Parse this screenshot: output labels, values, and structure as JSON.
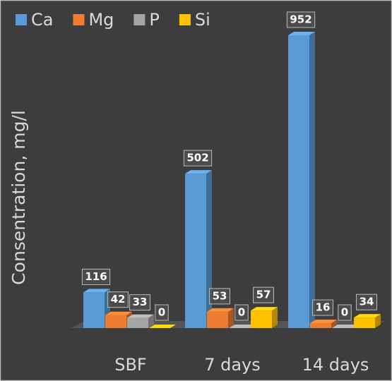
{
  "chart_data": {
    "type": "bar",
    "y_label": "Consentration, mg/l",
    "categories": [
      "SBF",
      "7 days",
      "14 days"
    ],
    "series": [
      {
        "name": "Ca",
        "color": "#5b9bd5",
        "values": [
          116,
          502,
          952
        ]
      },
      {
        "name": "Mg",
        "color": "#ed7d31",
        "values": [
          42,
          53,
          16
        ]
      },
      {
        "name": "P",
        "color": "#a5a5a5",
        "values": [
          33,
          0,
          0
        ]
      },
      {
        "name": "Si",
        "color": "#ffc000",
        "values": [
          0,
          57,
          34
        ]
      }
    ]
  }
}
